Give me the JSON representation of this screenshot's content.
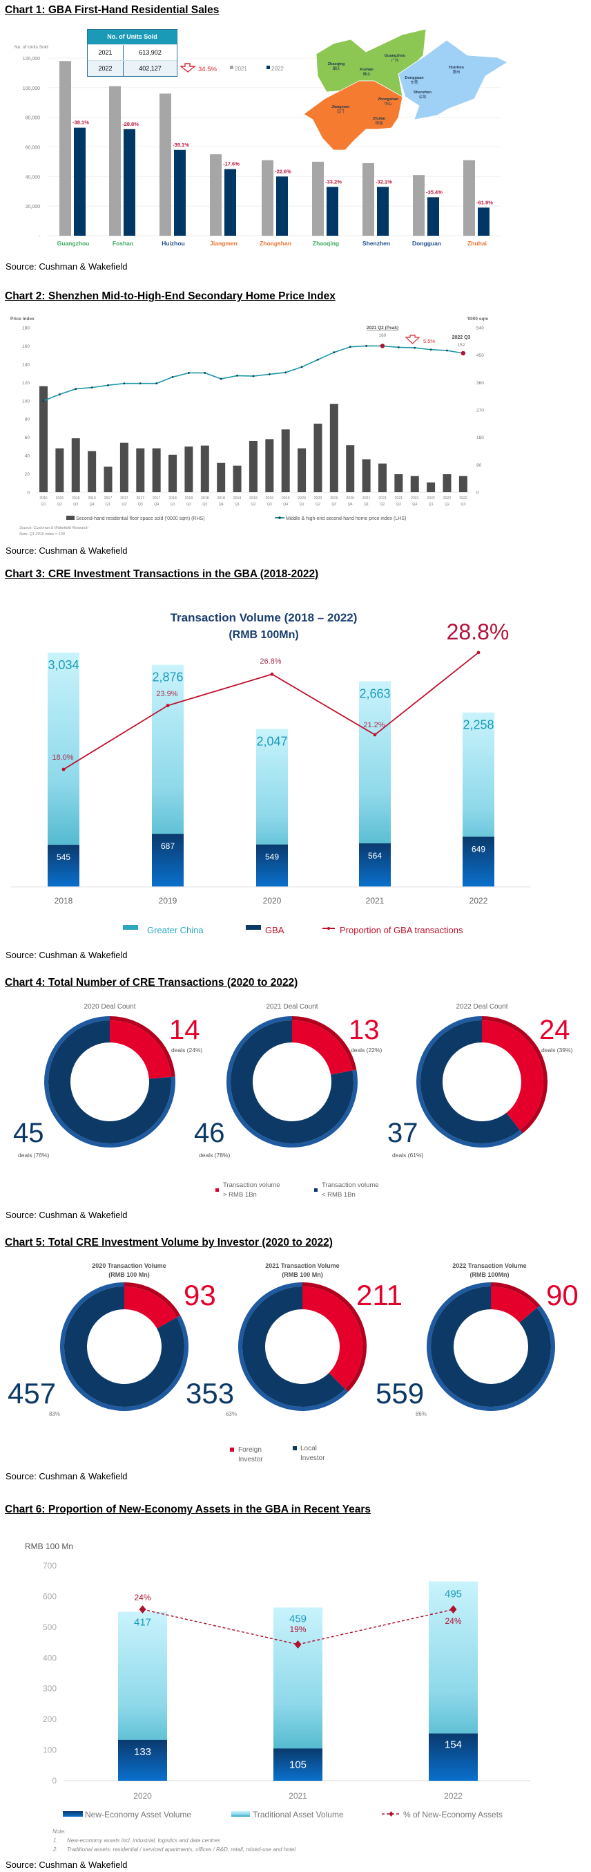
{
  "sections": [
    {
      "heading": "Chart 1: GBA First-Hand Residential Sales",
      "source": "Source: Cushman & Wakefield"
    },
    {
      "heading": "Chart 2: Shenzhen Mid-to-High-End Secondary Home Price Index",
      "source": "Source: Cushman & Wakefield"
    },
    {
      "heading": "Chart 3: CRE Investment Transactions in the GBA (2018-2022)",
      "source": "Source: Cushman & Wakefield"
    },
    {
      "heading": "Chart 4: Total Number of CRE Transactions (2020 to 2022)",
      "source": "Source: Cushman & Wakefield"
    },
    {
      "heading": "Chart 5: Total CRE Investment Volume by Investor (2020 to 2022)",
      "source": "Source: Cushman & Wakefield"
    },
    {
      "heading": "Chart 6: Proportion of New-Economy Assets in the GBA in Recent Years",
      "source": "Source: Cushman & Wakefield"
    }
  ],
  "colors": {
    "gray_2021": "#a6a6a6",
    "navy_2022": "#003764",
    "red": "#e4002b",
    "navy": "#0c3966",
    "teal": "#1b9ab8",
    "line_red": "#b0112e"
  },
  "chart_data": [
    {
      "type": "bar",
      "ylabel": "No. of Units Sold",
      "ylim": [
        0,
        120000
      ],
      "yticks": [
        "-",
        "20,000",
        "40,000",
        "60,000",
        "80,000",
        "100,000",
        "120,000"
      ],
      "categories": [
        "Guangzhou",
        "Foshan",
        "Huizhou",
        "Jiangmen",
        "Zhongshan",
        "Zhaoqing",
        "Shenzhen",
        "Dongguan",
        "Zhuhai"
      ],
      "category_colors": [
        "#3aaa5c",
        "#3aaa5c",
        "#1f4e8c",
        "#e8702a",
        "#e8702a",
        "#3aaa5c",
        "#1f4e8c",
        "#1f4e8c",
        "#e8702a"
      ],
      "series": [
        {
          "name": "2021",
          "color": "#a6a6a6",
          "values": [
            118000,
            101000,
            96000,
            55000,
            51000,
            50000,
            49000,
            41000,
            51000
          ]
        },
        {
          "name": "2022",
          "color": "#003764",
          "values": [
            73000,
            72000,
            58000,
            45000,
            40000,
            33000,
            33000,
            26000,
            19000
          ]
        }
      ],
      "change_labels": [
        "-38.1%",
        "-28.8%",
        "-39.1%",
        "-17.6%",
        "-22.6%",
        "-33.2%",
        "-32.1%",
        "-35.4%",
        "-61.9%"
      ],
      "table": {
        "header": "No. of Units Sold",
        "rows": [
          [
            "2021",
            "613,902"
          ],
          [
            "2022",
            "402,127"
          ]
        ]
      },
      "total_change": "34.5%",
      "map_regions": [
        {
          "name": "Zhaoqing",
          "name_zh": "肇庆"
        },
        {
          "name": "Foshan",
          "name_zh": "佛山"
        },
        {
          "name": "Guangzhou",
          "name_zh": "广州"
        },
        {
          "name": "Huizhou",
          "name_zh": "惠州"
        },
        {
          "name": "Dongguan",
          "name_zh": "东莞"
        },
        {
          "name": "Shenzhen",
          "name_zh": "深圳"
        },
        {
          "name": "Zhongshan",
          "name_zh": "中山"
        },
        {
          "name": "Jiangmen",
          "name_zh": "江门"
        },
        {
          "name": "Zhuhai",
          "name_zh": "珠海"
        }
      ]
    },
    {
      "type": "bar+line",
      "categories": [
        "2016 Q1",
        "2016 Q2",
        "2016 Q3",
        "2016 Q4",
        "2017 Q1",
        "2017 Q2",
        "2017 Q3",
        "2017 Q4",
        "2018 Q1",
        "2018 Q2",
        "2018 Q3",
        "2018 Q4",
        "2019 Q1",
        "2019 Q2",
        "2019 Q3",
        "2019 Q4",
        "2020 Q1",
        "2020 Q2",
        "2020 Q3",
        "2020 Q4",
        "2021 Q1",
        "2021 Q2",
        "2021 Q3",
        "2021 Q4",
        "2022 Q1",
        "2022 Q2",
        "2022 Q3"
      ],
      "left_axis": {
        "label": "Price Index",
        "ylim": [
          0,
          180
        ],
        "ticks": [
          0,
          20,
          40,
          60,
          80,
          100,
          120,
          140,
          160,
          180
        ]
      },
      "right_axis": {
        "label": "'0000 sqm",
        "ylim": [
          0,
          540
        ],
        "ticks": [
          0,
          90,
          180,
          270,
          360,
          450,
          540
        ]
      },
      "series": [
        {
          "name": "Second-hand residential floor space sold ('0000 sqm) (RHS)",
          "type": "bar",
          "axis": "right",
          "color": "#4d4d4d",
          "values": [
            348,
            144,
            177,
            135,
            84,
            162,
            144,
            144,
            123,
            150,
            153,
            96,
            87,
            168,
            174,
            206,
            144,
            225,
            290,
            154,
            108,
            94,
            59,
            53,
            32,
            59,
            53
          ]
        },
        {
          "name": "Middle & high-end second-hand home price index (LHS)",
          "type": "line",
          "axis": "left",
          "color": "#1a98a8",
          "values": [
            100,
            107,
            113,
            114.5,
            117,
            119,
            119,
            119,
            126,
            130.5,
            130.5,
            124,
            127.5,
            127,
            129,
            131,
            137,
            145,
            153,
            159,
            160,
            160,
            158.5,
            158,
            156,
            155,
            152
          ]
        }
      ],
      "annotations": {
        "peak_label": "2021 Q2 (Peak)",
        "peak_value": "160",
        "change": "5.5%",
        "latest_label": "2022 Q3",
        "latest_value": "152"
      },
      "notes": [
        "Source: Cushman & Wakefield Research",
        "Note: Q1 2016 index = 100"
      ]
    },
    {
      "type": "bar+line",
      "title": "Transaction Volume (2018 – 2022)",
      "subtitle": "(RMB 100Mn)",
      "categories": [
        "2018",
        "2019",
        "2020",
        "2021",
        "2022"
      ],
      "series": [
        {
          "name": "Greater China",
          "type": "bar",
          "values": [
            3034,
            2876,
            2047,
            2663,
            2258
          ],
          "labels": [
            "3,034",
            "2,876",
            "2,047",
            "2,663",
            "2,258"
          ]
        },
        {
          "name": "GBA",
          "type": "bar",
          "values": [
            545,
            687,
            549,
            564,
            649
          ],
          "labels": [
            "545",
            "687",
            "549",
            "564",
            "649"
          ]
        },
        {
          "name": "Proportion of GBA transactions",
          "type": "line",
          "values": [
            18.0,
            23.9,
            26.8,
            21.2,
            28.8
          ],
          "labels": [
            "18.0%",
            "23.9%",
            "26.8%",
            "21.2%",
            "28.8%"
          ]
        }
      ]
    },
    {
      "type": "pie",
      "panels": [
        {
          "title": "2020 Deal Count",
          "large": 14,
          "large_label": "deals (24%)",
          "small": 45,
          "small_label": "deals (76%)"
        },
        {
          "title": "2021 Deal Count",
          "large": 13,
          "large_label": "deals (22%)",
          "small": 46,
          "small_label": "deals (78%)"
        },
        {
          "title": "2022 Deal Count",
          "large": 24,
          "large_label": "deals (39%)",
          "small": 37,
          "small_label": "deals (61%)"
        }
      ],
      "legend": [
        [
          "Transaction volume",
          "> RMB 1Bn"
        ],
        [
          "Transaction volume",
          "< RMB 1Bn"
        ]
      ]
    },
    {
      "type": "pie",
      "panels": [
        {
          "title": [
            "2020 Transaction Volume",
            "(RMB 100 Mn)"
          ],
          "foreign": 93,
          "local": 457,
          "local_pct": "83%"
        },
        {
          "title": [
            "2021 Transaction Volume",
            "(RMB 100 Mn)"
          ],
          "foreign": 211,
          "local": 353,
          "local_pct": "63%"
        },
        {
          "title": [
            "2022 Transaction Volume",
            "(RMB 100Mn)"
          ],
          "foreign": 90,
          "local": 559,
          "local_pct": "86%"
        }
      ],
      "legend": [
        [
          "Foreign",
          "Investor"
        ],
        [
          "Local",
          "Investor"
        ]
      ]
    },
    {
      "type": "bar+line",
      "ylabel": "RMB 100 Mn",
      "ylim": [
        0,
        700
      ],
      "yticks": [
        0,
        100,
        200,
        300,
        400,
        500,
        600,
        700
      ],
      "categories": [
        "2020",
        "2021",
        "2022"
      ],
      "series": [
        {
          "name": "New-Economy Asset Volume",
          "type": "bar",
          "values": [
            133,
            105,
            154
          ]
        },
        {
          "name": "Traditional Asset Volume",
          "type": "bar",
          "values": [
            417,
            459,
            495
          ]
        },
        {
          "name": "% of New-Economy Assets",
          "type": "line",
          "values": [
            24,
            19,
            24
          ],
          "labels": [
            "24%",
            "19%",
            "24%"
          ]
        }
      ],
      "notes": [
        "Note:",
        "1.",
        "New-economy assets incl. industrial, logistics and data centres",
        "2.",
        "Traditional assets: residential / serviced apartments, offices / R&D, retail, mixed-use and hotel"
      ]
    }
  ]
}
